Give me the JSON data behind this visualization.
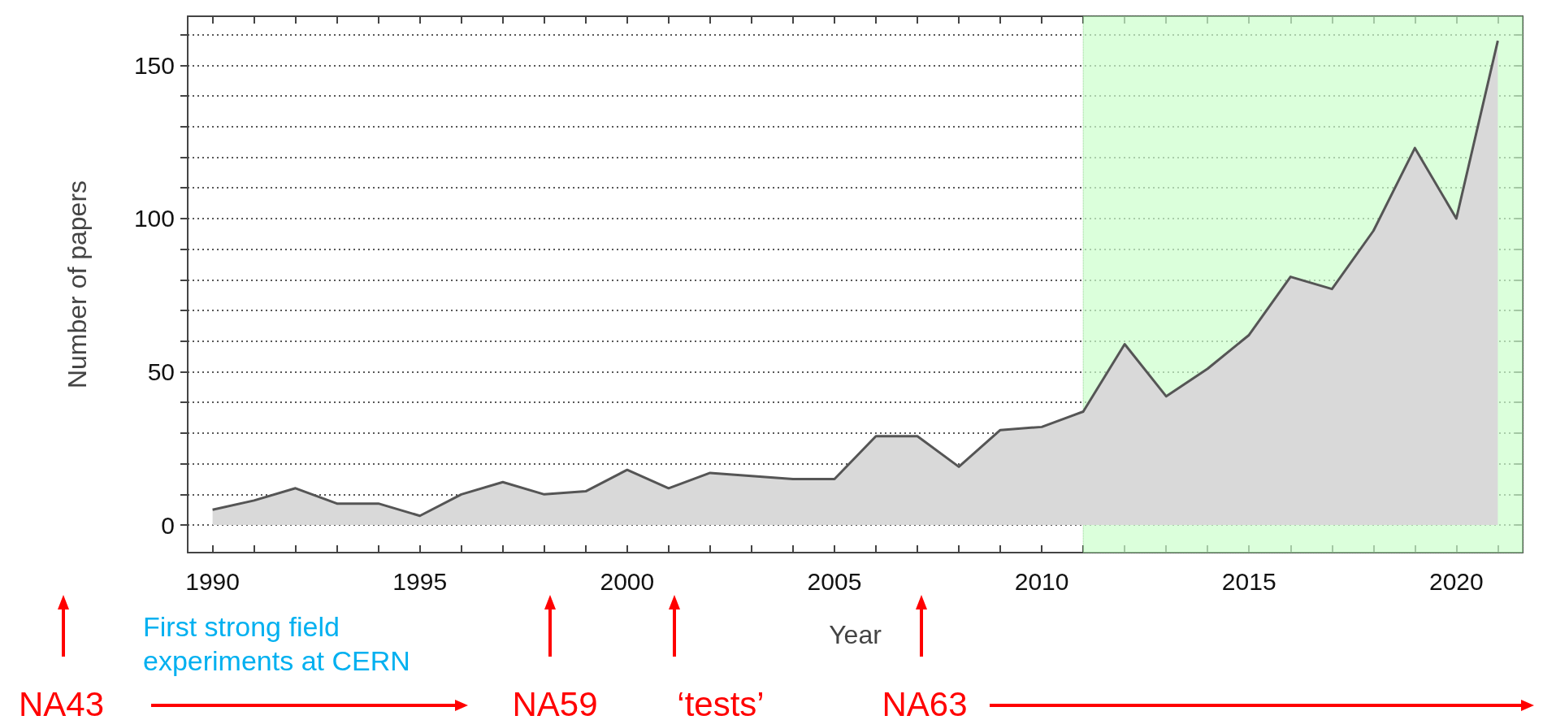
{
  "chart_data": {
    "type": "area",
    "xlabel": "Year",
    "ylabel": "Number of papers",
    "x": [
      1990,
      1991,
      1992,
      1993,
      1994,
      1995,
      1996,
      1997,
      1998,
      1999,
      2000,
      2001,
      2002,
      2003,
      2004,
      2005,
      2006,
      2007,
      2008,
      2009,
      2010,
      2011,
      2012,
      2013,
      2014,
      2015,
      2016,
      2017,
      2018,
      2019,
      2020,
      2021
    ],
    "series": [
      {
        "color": "#555555",
        "values": [
          5,
          8,
          12,
          7,
          7,
          3,
          10,
          14,
          10,
          11,
          18,
          12,
          17,
          16,
          15,
          15,
          29,
          29,
          19,
          31,
          32,
          37,
          59,
          42,
          51,
          62,
          81,
          77,
          96,
          123,
          100,
          158
        ]
      }
    ],
    "xlim": [
      1989.4,
      2021.6
    ],
    "ylim": [
      -9,
      166
    ],
    "xticks": [
      1990,
      {
        "value": 1991,
        "label": null
      },
      {
        "value": 1992,
        "label": null
      },
      {
        "value": 1993,
        "label": null
      },
      {
        "value": 1994,
        "label": null
      },
      1995,
      {
        "value": 1996,
        "label": null
      },
      {
        "value": 1997,
        "label": null
      },
      {
        "value": 1998,
        "label": null
      },
      {
        "value": 1999,
        "label": null
      },
      2000,
      {
        "value": 2001,
        "label": null
      },
      {
        "value": 2002,
        "label": null
      },
      {
        "value": 2003,
        "label": null
      },
      {
        "value": 2004,
        "label": null
      },
      2005,
      {
        "value": 2006,
        "label": null
      },
      {
        "value": 2007,
        "label": null
      },
      {
        "value": 2008,
        "label": null
      },
      {
        "value": 2009,
        "label": null
      },
      2010,
      {
        "value": 2011,
        "label": null
      },
      {
        "value": 2012,
        "label": null
      },
      {
        "value": 2013,
        "label": null
      },
      {
        "value": 2014,
        "label": null
      },
      2015,
      {
        "value": 2016,
        "label": null
      },
      {
        "value": 2017,
        "label": null
      },
      {
        "value": 2018,
        "label": null
      },
      {
        "value": 2019,
        "label": null
      },
      2020,
      {
        "value": 2021,
        "label": null
      }
    ],
    "yticks": [
      0,
      {
        "value": 10,
        "label": null
      },
      {
        "value": 20,
        "label": null
      },
      {
        "value": 30,
        "label": null
      },
      {
        "value": 40,
        "label": null
      },
      50,
      {
        "value": 60,
        "label": null
      },
      {
        "value": 70,
        "label": null
      },
      {
        "value": 80,
        "label": null
      },
      {
        "value": 90,
        "label": null
      },
      100,
      {
        "value": 110,
        "label": null
      },
      {
        "value": 120,
        "label": null
      },
      {
        "value": 130,
        "label": null
      },
      {
        "value": 140,
        "label": null
      },
      150,
      {
        "value": 160,
        "label": null
      }
    ],
    "grid": "y",
    "bands": [
      {
        "axis": "x",
        "from": 2011,
        "to": 2021.6,
        "color": "#ccffcc"
      }
    ],
    "annotations": [
      "NA43",
      "First strong field experiments at CERN",
      "NA59",
      "‘tests’",
      "NA63"
    ]
  }
}
